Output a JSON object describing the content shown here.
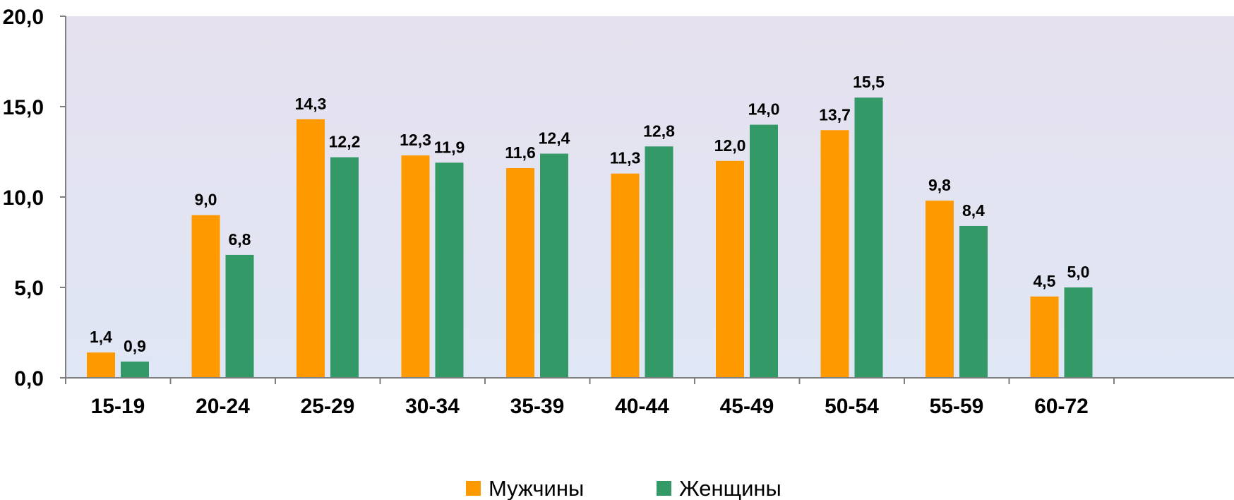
{
  "chart_data": {
    "type": "bar",
    "title": "",
    "xlabel": "",
    "ylabel": "",
    "ylim": [
      0,
      20
    ],
    "yticks": [
      "0,0",
      "5,0",
      "10,0",
      "15,0",
      "20,0"
    ],
    "ytick_values": [
      0,
      5,
      10,
      15,
      20
    ],
    "grid": false,
    "legend_position": "bottom",
    "categories": [
      "15-19",
      "20-24",
      "25-29",
      "30-34",
      "35-39",
      "40-44",
      "45-49",
      "50-54",
      "55-59",
      "60-72"
    ],
    "series": [
      {
        "name": "Мужчины",
        "color": "#FF9900",
        "values": [
          1.4,
          9.0,
          14.3,
          12.3,
          11.6,
          11.3,
          12.0,
          13.7,
          9.8,
          4.5
        ],
        "labels": [
          "1,4",
          "9,0",
          "14,3",
          "12,3",
          "11,6",
          "11,3",
          "12,0",
          "13,7",
          "9,8",
          "4,5"
        ]
      },
      {
        "name": "Женщины",
        "color": "#339966",
        "values": [
          0.9,
          6.8,
          12.2,
          11.9,
          12.4,
          12.8,
          14.0,
          15.5,
          8.4,
          5.0
        ],
        "labels": [
          "0,9",
          "6,8",
          "12,2",
          "11,9",
          "12,4",
          "12,8",
          "14,0",
          "15,5",
          "8,4",
          "5,0"
        ]
      }
    ],
    "background": {
      "gradient_top": "#E6E1EE",
      "gradient_bottom": "#DFE6F5"
    }
  }
}
